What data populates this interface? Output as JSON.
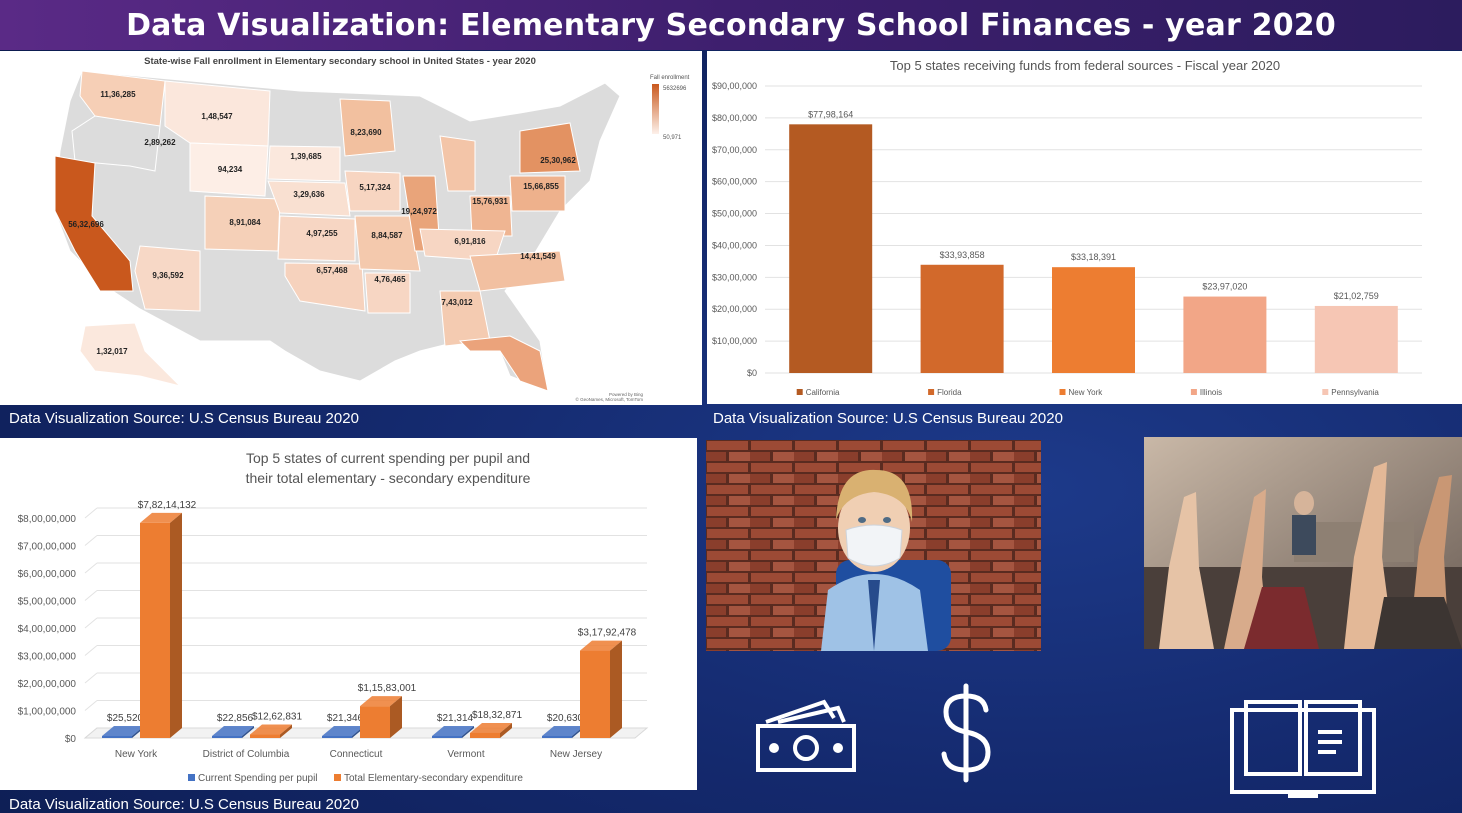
{
  "title": "Data Visualization: Elementary Secondary School Finances - year 2020",
  "source_note": "Data Visualization Source: U.S Census Bureau 2020",
  "map": {
    "title": "State-wise Fall enrollment in Elementary secondary school in United States - year 2020",
    "legend_title": "Fall enrollment",
    "legend_max": "5632696",
    "legend_min": "50,971",
    "credit_line1": "Powered by Bing",
    "credit_line2": "© GeoNames, Microsoft, TomTom",
    "labels": [
      {
        "state": "Washington",
        "value": "11,36,285"
      },
      {
        "state": "Montana",
        "value": "1,48,547"
      },
      {
        "state": "Oregon",
        "value": "2,89,262"
      },
      {
        "state": "South Dakota",
        "value": "1,39,685"
      },
      {
        "state": "Wyoming",
        "value": "94,234"
      },
      {
        "state": "Minnesota",
        "value": "8,23,690"
      },
      {
        "state": "New York",
        "value": "25,30,962"
      },
      {
        "state": "Iowa",
        "value": "5,17,324"
      },
      {
        "state": "Nebraska",
        "value": "3,29,636"
      },
      {
        "state": "Pennsylvania",
        "value": "15,66,855"
      },
      {
        "state": "Ohio",
        "value": "15,76,931"
      },
      {
        "state": "Illinois",
        "value": "19,24,972"
      },
      {
        "state": "California",
        "value": "56,32,696"
      },
      {
        "state": "Colorado",
        "value": "8,91,084"
      },
      {
        "state": "Kansas",
        "value": "4,97,255"
      },
      {
        "state": "Missouri",
        "value": "8,84,587"
      },
      {
        "state": "Kentucky",
        "value": "6,91,816"
      },
      {
        "state": "North Carolina",
        "value": "14,41,549"
      },
      {
        "state": "Oklahoma",
        "value": "6,57,468"
      },
      {
        "state": "Arkansas",
        "value": "4,76,465"
      },
      {
        "state": "Arizona",
        "value": "9,36,592"
      },
      {
        "state": "Georgia",
        "value": "7,43,012"
      },
      {
        "state": "Alaska",
        "value": "1,32,017"
      }
    ]
  },
  "chart_data": [
    {
      "type": "bar",
      "title": "Top 5 states receiving funds from federal sources - Fiscal year 2020",
      "categories": [
        "California",
        "Florida",
        "New York",
        "Illinois",
        "Pennsylvania"
      ],
      "values": [
        7798164,
        3393858,
        3318391,
        2397020,
        2102759
      ],
      "value_labels": [
        "$77,98,164",
        "$33,93,858",
        "$33,18,391",
        "$23,97,020",
        "$21,02,759"
      ],
      "colors": [
        "#b45a22",
        "#d2692b",
        "#ed7d31",
        "#f2a687",
        "#f6c6b4"
      ],
      "ylim": [
        0,
        9000000
      ],
      "yticks": [
        "$0",
        "$10,00,000",
        "$20,00,000",
        "$30,00,000",
        "$40,00,000",
        "$50,00,000",
        "$60,00,000",
        "$70,00,000",
        "$80,00,000",
        "$90,00,000"
      ],
      "grid": true,
      "legend": "bottom"
    },
    {
      "type": "bar",
      "title_line1": "Top 5 states of current spending per pupil and",
      "title_line2": "their total elementary - secondary expenditure",
      "categories": [
        "New York",
        "District of Columbia",
        "Connecticut",
        "Vermont",
        "New Jersey"
      ],
      "series": [
        {
          "name": "Current Spending per pupil",
          "values": [
            25520,
            22856,
            21346,
            21314,
            20630
          ],
          "labels": [
            "$25,520",
            "$22,856",
            "$21,346",
            "$21,314",
            "$20,630"
          ],
          "color": "#4472c4"
        },
        {
          "name": "Total Elementary-secondary expenditure",
          "values": [
            78214132,
            1262831,
            11583001,
            1832871,
            31792478
          ],
          "labels": [
            "$7,82,14,132",
            "$12,62,831",
            "$1,15,83,001",
            "$18,32,871",
            "$3,17,92,478"
          ],
          "color": "#ed7d31"
        }
      ],
      "ylim": [
        0,
        80000000
      ],
      "yticks": [
        "$0",
        "$1,00,00,000",
        "$2,00,00,000",
        "$3,00,00,000",
        "$4,00,00,000",
        "$5,00,00,000",
        "$6,00,00,000",
        "$7,00,00,000",
        "$8,00,00,000"
      ],
      "grid": true,
      "legend": "bottom"
    }
  ],
  "icons": [
    "cash-icon",
    "dollar-icon",
    "book-icon"
  ],
  "photos": [
    "masked-child-photo",
    "classroom-raised-hands-photo"
  ]
}
